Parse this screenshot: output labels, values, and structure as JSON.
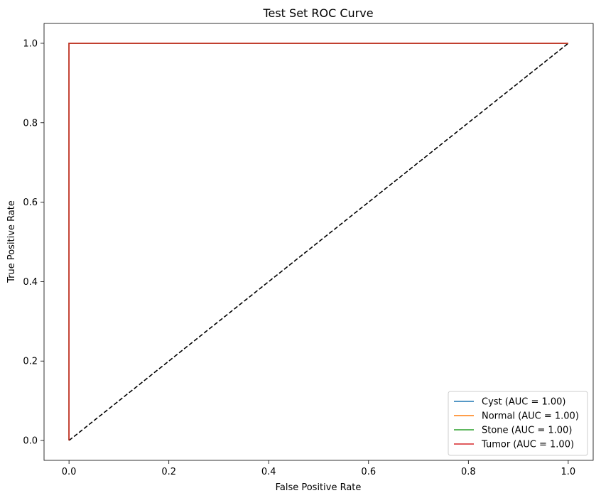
{
  "chart_data": {
    "type": "line",
    "title": "Test Set ROC Curve",
    "xlabel": "False Positive Rate",
    "ylabel": "True Positive Rate",
    "xlim": [
      -0.05,
      1.05
    ],
    "ylim": [
      -0.05,
      1.05
    ],
    "xticks": [
      0.0,
      0.2,
      0.4,
      0.6,
      0.8,
      1.0
    ],
    "xtick_labels": [
      "0.0",
      "0.2",
      "0.4",
      "0.6",
      "0.8",
      "1.0"
    ],
    "yticks": [
      0.0,
      0.2,
      0.4,
      0.6,
      0.8,
      1.0
    ],
    "ytick_labels": [
      "0.0",
      "0.2",
      "0.4",
      "0.6",
      "0.8",
      "1.0"
    ],
    "grid": false,
    "legend_position": "lower-right",
    "series": [
      {
        "name": "Cyst (AUC = 1.00)",
        "color": "#1f77b4",
        "x": [
          0.0,
          0.0,
          1.0
        ],
        "y": [
          0.0,
          1.0,
          1.0
        ]
      },
      {
        "name": "Normal (AUC = 1.00)",
        "color": "#ff7f0e",
        "x": [
          0.0,
          0.0,
          1.0
        ],
        "y": [
          0.0,
          1.0,
          1.0
        ]
      },
      {
        "name": "Stone (AUC = 1.00)",
        "color": "#2ca02c",
        "x": [
          0.0,
          0.0,
          1.0
        ],
        "y": [
          0.0,
          1.0,
          1.0
        ]
      },
      {
        "name": "Tumor (AUC = 1.00)",
        "color": "#d62728",
        "x": [
          0.0,
          0.0,
          1.0
        ],
        "y": [
          0.0,
          1.0,
          1.0
        ]
      }
    ],
    "reference_line": {
      "x": [
        0.0,
        1.0
      ],
      "y": [
        0.0,
        1.0
      ],
      "color": "#000000",
      "style": "dashed"
    }
  }
}
